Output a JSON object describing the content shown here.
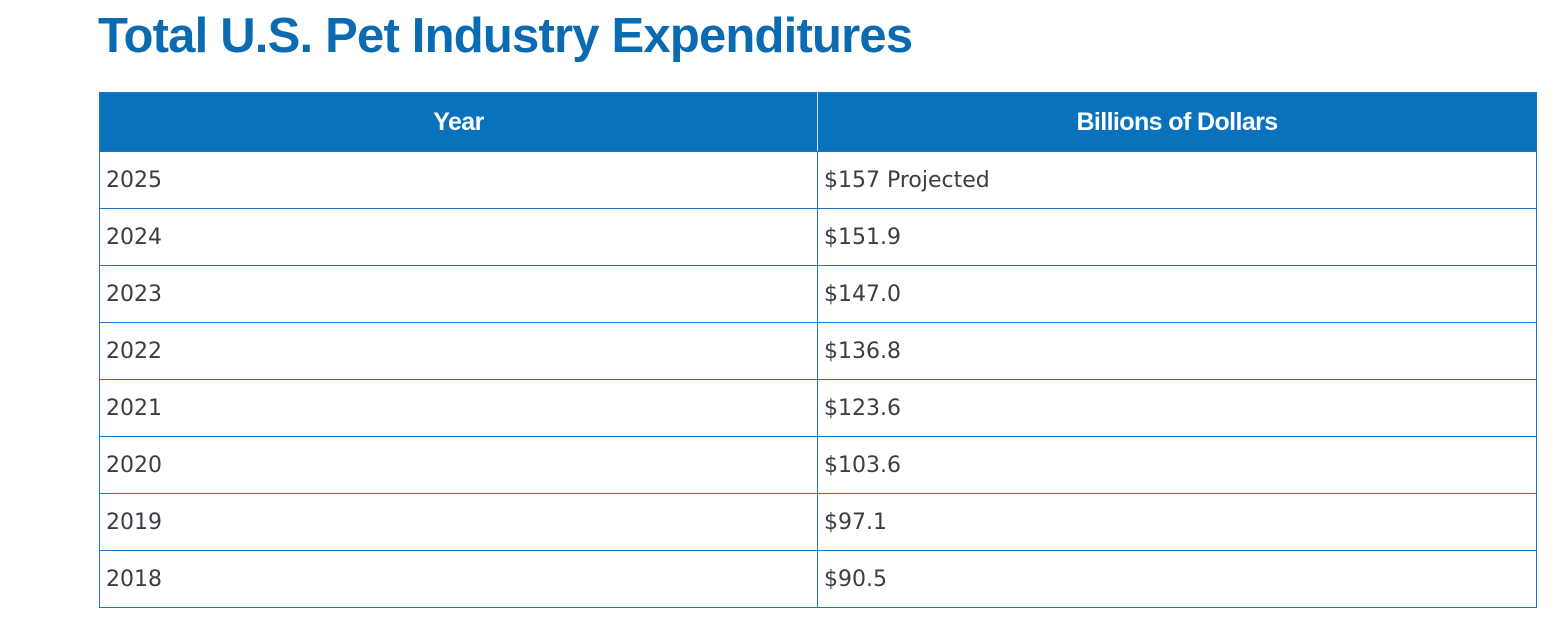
{
  "title": "Total U.S. Pet Industry Expenditures",
  "colors": {
    "title": "#0a6bb3",
    "header_bg": "#0a71bd",
    "border": "#1f74c1"
  },
  "chart_data": {
    "type": "table",
    "title": "Total U.S. Pet Industry Expenditures",
    "columns": [
      "Year",
      "Billions of Dollars"
    ],
    "rows": [
      {
        "year": "2025",
        "value": "$157 Projected"
      },
      {
        "year": "2024",
        "value": "$151.9"
      },
      {
        "year": "2023",
        "value": "$147.0"
      },
      {
        "year": "2022",
        "value": "$136.8"
      },
      {
        "year": "2021",
        "value": "$123.6"
      },
      {
        "year": "2020",
        "value": "$103.6"
      },
      {
        "year": "2019",
        "value": "$97.1"
      },
      {
        "year": "2018",
        "value": "$90.5"
      }
    ]
  }
}
